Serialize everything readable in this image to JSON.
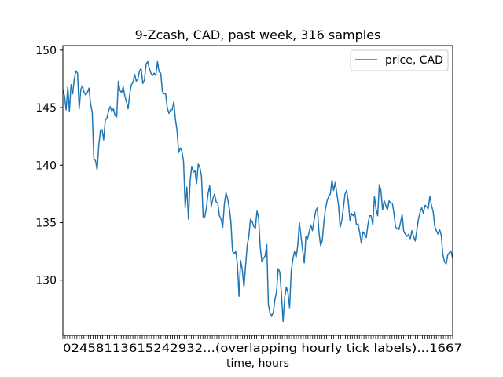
{
  "chart_data": {
    "type": "line",
    "title": "9-Zcash, CAD, past week, 316 samples",
    "xlabel": "time, hours",
    "ylabel": "",
    "xlim": [
      0,
      167
    ],
    "ylim": [
      125.2,
      150.4
    ],
    "y_ticks": [
      130,
      135,
      140,
      145,
      150
    ],
    "x_tick_label_text": "02458113615242932...(overlapping hourly tick labels)...1667",
    "x_tick_count": 168,
    "grid": false,
    "legend": {
      "position": "top-right",
      "entries": [
        "price, CAD"
      ]
    },
    "series": [
      {
        "name": "price, CAD",
        "color": "#1f77b4",
        "x_start": 0,
        "x_end": 167,
        "values": [
          146.6,
          146.0,
          144.8,
          146.8,
          144.7,
          147.0,
          146.2,
          147.5,
          148.2,
          148.0,
          144.9,
          146.6,
          146.9,
          146.3,
          146.1,
          146.3,
          146.7,
          145.3,
          144.6,
          140.5,
          140.4,
          139.6,
          141.7,
          143.0,
          143.1,
          142.2,
          143.9,
          144.1,
          144.7,
          145.1,
          144.7,
          144.9,
          144.3,
          144.2,
          147.3,
          146.5,
          146.3,
          146.8,
          146.0,
          145.5,
          144.9,
          146.2,
          147.0,
          147.2,
          147.9,
          147.3,
          147.5,
          148.2,
          148.4,
          147.1,
          147.4,
          148.8,
          149.0,
          148.4,
          148.0,
          147.8,
          148.0,
          147.8,
          149.0,
          148.1,
          148.0,
          146.4,
          146.2,
          146.2,
          145.0,
          144.5,
          144.8,
          144.8,
          145.5,
          144.0,
          143.0,
          141.1,
          141.5,
          141.2,
          140.3,
          136.3,
          138.1,
          135.3,
          138.6,
          139.9,
          139.4,
          139.5,
          138.4,
          140.1,
          139.8,
          139.0,
          135.5,
          135.5,
          136.3,
          137.5,
          138.2,
          136.4,
          137.1,
          137.5,
          136.8,
          136.7,
          135.6,
          135.3,
          134.6,
          136.6,
          137.6,
          137.1,
          136.3,
          135.1,
          132.5,
          132.3,
          132.5,
          131.4,
          128.6,
          131.7,
          130.9,
          129.4,
          131.2,
          133.0,
          133.8,
          135.3,
          135.1,
          134.7,
          134.5,
          136.0,
          135.4,
          132.9,
          131.6,
          131.9,
          132.1,
          133.1,
          127.9,
          127.1,
          126.9,
          127.2,
          128.3,
          129.0,
          131.0,
          130.7,
          128.8,
          126.4,
          128.5,
          129.4,
          128.9,
          127.6,
          130.8,
          131.8,
          132.5,
          132.0,
          133.0,
          135.0,
          133.8,
          132.6,
          131.5,
          133.8,
          133.6,
          134.2,
          134.8,
          134.3,
          135.2,
          136.0,
          136.3,
          134.2,
          133.0,
          133.4,
          135.0,
          136.2,
          136.9,
          137.3,
          137.5,
          138.7,
          137.8,
          138.5,
          137.5,
          136.5,
          134.6,
          135.2,
          136.3,
          137.5,
          137.8,
          136.8,
          135.2,
          135.8,
          135.6,
          135.9,
          134.8,
          134.9,
          134.1,
          133.2,
          134.2,
          134.0,
          133.7,
          134.8,
          135.6,
          135.6,
          134.8,
          137.3,
          136.2,
          135.6,
          138.3,
          137.8,
          136.1,
          136.9,
          136.5,
          136.1,
          136.9,
          136.7,
          136.7,
          135.8,
          134.6,
          134.5,
          134.4,
          135.0,
          135.7,
          134.2,
          134.0,
          133.8,
          134.0,
          133.6,
          134.3,
          133.8,
          133.4,
          134.3,
          135.3,
          135.9,
          136.3,
          135.8,
          136.5,
          136.4,
          136.2,
          137.3,
          136.5,
          136.0,
          134.7,
          134.3,
          134.0,
          134.4,
          133.9,
          132.2,
          131.6,
          131.4,
          132.2,
          132.4,
          132.5,
          131.9
        ]
      }
    ]
  }
}
